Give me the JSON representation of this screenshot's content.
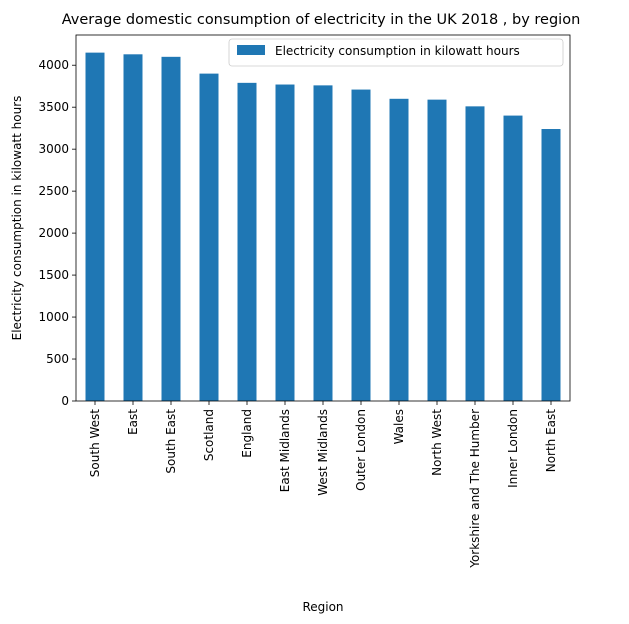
{
  "chart_data": {
    "type": "bar",
    "title": "Average domestic consumption of electricity in the UK 2018 , by region",
    "xlabel": "Region",
    "ylabel": "Electricity consumption in kilowatt hours",
    "categories": [
      "South West",
      "East",
      "South East",
      "Scotland",
      "England",
      "East Midlands",
      "West Midlands",
      "Outer London",
      "Wales",
      "North West",
      "Yorkshire and The Humber",
      "Inner London",
      "North East"
    ],
    "series": [
      {
        "name": "Electricity consumption in kilowatt hours",
        "values": [
          4150,
          4130,
          4100,
          3900,
          3790,
          3770,
          3760,
          3710,
          3600,
          3590,
          3510,
          3400,
          3240
        ],
        "color": "#1f77b4"
      }
    ],
    "ylim": [
      0,
      4360
    ],
    "yticks": [
      0,
      500,
      1000,
      1500,
      2000,
      2500,
      3000,
      3500,
      4000
    ],
    "grid": false,
    "legend_position": "top-right"
  }
}
